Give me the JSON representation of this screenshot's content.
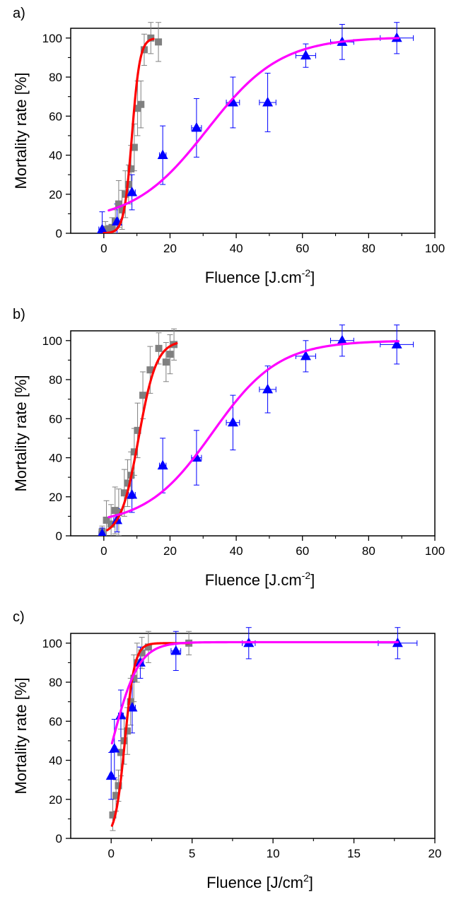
{
  "chart_data": [
    {
      "type": "scatter",
      "panel_label": "a)",
      "xlabel": {
        "main": "Fluence [J.cm",
        "sup": "-2",
        "end": "]"
      },
      "ylabel": "Mortality rate [%]",
      "xlim": [
        -10,
        100
      ],
      "ylim": [
        0,
        105
      ],
      "xticks": [
        0,
        20,
        40,
        60,
        80,
        100
      ],
      "yticks": [
        0,
        20,
        40,
        60,
        80,
        100
      ],
      "xminor_step": 10,
      "yminor_step": 10,
      "grid": false,
      "series": [
        {
          "marker": "square",
          "color": "#808080",
          "points": [
            {
              "x": 0.5,
              "y": 2,
              "yerr": 4
            },
            {
              "x": 1.5,
              "y": 0,
              "yerr": 4
            },
            {
              "x": 2.5,
              "y": 3,
              "yerr": 5
            },
            {
              "x": 3.5,
              "y": 6,
              "yerr": 6
            },
            {
              "x": 4.5,
              "y": 15,
              "yerr": 12
            },
            {
              "x": 5.5,
              "y": 12,
              "yerr": 10
            },
            {
              "x": 6.5,
              "y": 20,
              "yerr": 12
            },
            {
              "x": 7.5,
              "y": 25,
              "yerr": 10
            },
            {
              "x": 8.2,
              "y": 33,
              "yerr": 12
            },
            {
              "x": 9.2,
              "y": 44,
              "yerr": 12
            },
            {
              "x": 10.2,
              "y": 64,
              "yerr": 14
            },
            {
              "x": 11.2,
              "y": 66,
              "yerr": 12
            },
            {
              "x": 12.2,
              "y": 94,
              "yerr": 8
            },
            {
              "x": 14.2,
              "y": 100,
              "yerr": 8
            },
            {
              "x": 16.5,
              "y": 98,
              "yerr": 10
            }
          ],
          "fit": {
            "model": "logistic",
            "A1": 0,
            "A2": 100,
            "x0": 8.5,
            "s": 1.2,
            "xrange": [
              0,
              15
            ]
          },
          "fit_color": "#ff0000"
        },
        {
          "marker": "triangle",
          "color": "#0000ff",
          "points": [
            {
              "x": -0.5,
              "y": 2,
              "yerr": 9,
              "xerr": 1
            },
            {
              "x": 4,
              "y": 6,
              "yerr": 9,
              "xerr": 1
            },
            {
              "x": 8.5,
              "y": 21,
              "yerr": 9,
              "xerr": 1
            },
            {
              "x": 17.8,
              "y": 40,
              "yerr": 15,
              "xerr": 1
            },
            {
              "x": 28,
              "y": 54,
              "yerr": 15,
              "xerr": 1.5
            },
            {
              "x": 39,
              "y": 67,
              "yerr": 13,
              "xerr": 2
            },
            {
              "x": 49.5,
              "y": 67,
              "yerr": 15,
              "xerr": 2.5
            },
            {
              "x": 61,
              "y": 91,
              "yerr": 6,
              "xerr": 3
            },
            {
              "x": 72,
              "y": 98,
              "yerr": 9,
              "xerr": 3.5
            },
            {
              "x": 88.5,
              "y": 100,
              "yerr": 8,
              "xerr": 5
            }
          ],
          "fit": {
            "model": "logistic",
            "A1": 5.6,
            "A2": 100.5,
            "x0": 31.2,
            "s": 11.1,
            "xrange": [
              1.5,
              89
            ]
          },
          "fit_color": "#ff00ff"
        }
      ]
    },
    {
      "type": "scatter",
      "panel_label": "b)",
      "xlabel": {
        "main": "Fluence [J.cm",
        "sup": "-2",
        "end": "]"
      },
      "ylabel": "Mortality rate [%]",
      "xlim": [
        -10,
        100
      ],
      "ylim": [
        0,
        105
      ],
      "xticks": [
        0,
        20,
        40,
        60,
        80,
        100
      ],
      "yticks": [
        0,
        20,
        40,
        60,
        80,
        100
      ],
      "xminor_step": 10,
      "yminor_step": 10,
      "grid": false,
      "series": [
        {
          "marker": "square",
          "color": "#808080",
          "points": [
            {
              "x": -0.5,
              "y": 2,
              "yerr": 3
            },
            {
              "x": 0.8,
              "y": 8,
              "yerr": 10
            },
            {
              "x": 2.2,
              "y": 6,
              "yerr": 10
            },
            {
              "x": 3.4,
              "y": 13,
              "yerr": 12
            },
            {
              "x": 4.5,
              "y": 12,
              "yerr": 12
            },
            {
              "x": 6.2,
              "y": 22,
              "yerr": 12
            },
            {
              "x": 7.2,
              "y": 27,
              "yerr": 12
            },
            {
              "x": 8.2,
              "y": 31,
              "yerr": 12
            },
            {
              "x": 9.2,
              "y": 43,
              "yerr": 12
            },
            {
              "x": 10.2,
              "y": 54,
              "yerr": 14
            },
            {
              "x": 11.8,
              "y": 72,
              "yerr": 12
            },
            {
              "x": 14,
              "y": 85,
              "yerr": 12
            },
            {
              "x": 16.6,
              "y": 96,
              "yerr": 8
            },
            {
              "x": 18.8,
              "y": 89,
              "yerr": 10
            },
            {
              "x": 20,
              "y": 93,
              "yerr": 10
            },
            {
              "x": 21.2,
              "y": 98,
              "yerr": 8
            }
          ],
          "fit": {
            "model": "logistic",
            "A1": 0,
            "A2": 100,
            "x0": 10.5,
            "s": 2.7,
            "xrange": [
              1,
              22
            ]
          },
          "fit_color": "#ff0000"
        },
        {
          "marker": "triangle",
          "color": "#0000ff",
          "points": [
            {
              "x": -0.5,
              "y": 1,
              "yerr": 3,
              "xerr": 1
            },
            {
              "x": 4,
              "y": 8,
              "yerr": 6,
              "xerr": 1
            },
            {
              "x": 8.5,
              "y": 21,
              "yerr": 9,
              "xerr": 1
            },
            {
              "x": 17.8,
              "y": 36,
              "yerr": 14,
              "xerr": 1
            },
            {
              "x": 28,
              "y": 40,
              "yerr": 14,
              "xerr": 1.5
            },
            {
              "x": 39,
              "y": 58,
              "yerr": 14,
              "xerr": 2
            },
            {
              "x": 49.5,
              "y": 75,
              "yerr": 12,
              "xerr": 2.5
            },
            {
              "x": 61,
              "y": 92,
              "yerr": 8,
              "xerr": 3
            },
            {
              "x": 72,
              "y": 100,
              "yerr": 8,
              "xerr": 3.5
            },
            {
              "x": 88.5,
              "y": 98,
              "yerr": 10,
              "xerr": 5
            }
          ],
          "fit": {
            "model": "logistic",
            "A1": 5.6,
            "A2": 100,
            "x0": 32.8,
            "s": 10,
            "xrange": [
              1.5,
              89
            ]
          },
          "fit_color": "#ff00ff"
        }
      ]
    },
    {
      "type": "scatter",
      "panel_label": "c)",
      "xlabel": {
        "main": "Fluence [J/cm",
        "sup": "2",
        "end": "]"
      },
      "ylabel": "Mortality rate [%]",
      "xlim": [
        -2.5,
        20
      ],
      "ylim": [
        0,
        105
      ],
      "xticks": [
        0,
        5,
        10,
        15,
        20
      ],
      "yticks": [
        0,
        20,
        40,
        60,
        80,
        100
      ],
      "xminor_step": 2.5,
      "yminor_step": 10,
      "grid": false,
      "series": [
        {
          "marker": "square",
          "color": "#808080",
          "points": [
            {
              "x": 0.1,
              "y": 12,
              "yerr": 8
            },
            {
              "x": 0.3,
              "y": 22,
              "yerr": 8
            },
            {
              "x": 0.45,
              "y": 27,
              "yerr": 8
            },
            {
              "x": 0.6,
              "y": 44,
              "yerr": 12
            },
            {
              "x": 0.8,
              "y": 50,
              "yerr": 12
            },
            {
              "x": 1.0,
              "y": 55,
              "yerr": 12
            },
            {
              "x": 1.2,
              "y": 70,
              "yerr": 12
            },
            {
              "x": 1.4,
              "y": 82,
              "yerr": 12
            },
            {
              "x": 1.6,
              "y": 90,
              "yerr": 10
            },
            {
              "x": 1.9,
              "y": 95,
              "yerr": 8
            },
            {
              "x": 2.3,
              "y": 98,
              "yerr": 8
            },
            {
              "x": 4.8,
              "y": 100,
              "yerr": 6
            }
          ],
          "fit": {
            "model": "logistic",
            "A1": 0,
            "A2": 100,
            "x0": 0.85,
            "s": 0.3,
            "xrange": [
              0.05,
              4.8
            ]
          },
          "fit_color": "#ff0000"
        },
        {
          "marker": "triangle",
          "color": "#0000ff",
          "points": [
            {
              "x": 0.0,
              "y": 32,
              "yerr": 12,
              "xerr": 0.1
            },
            {
              "x": 0.2,
              "y": 46,
              "yerr": 15,
              "xerr": 0.1
            },
            {
              "x": 0.6,
              "y": 63,
              "yerr": 13,
              "xerr": 0.15
            },
            {
              "x": 1.3,
              "y": 67,
              "yerr": 13,
              "xerr": 0.2
            },
            {
              "x": 1.8,
              "y": 90,
              "yerr": 8,
              "xerr": 0.2
            },
            {
              "x": 4.0,
              "y": 96,
              "yerr": 10,
              "xerr": 0.3
            },
            {
              "x": 8.5,
              "y": 100,
              "yerr": 8,
              "xerr": 0.4
            },
            {
              "x": 17.7,
              "y": 100,
              "yerr": 8,
              "xerr": 1.2
            }
          ],
          "fit": {
            "model": "logistic",
            "A1": 0,
            "A2": 100.5,
            "x0": 0.1,
            "s": 0.8,
            "xrange": [
              0.05,
              17.7
            ]
          },
          "fit_color": "#ff00ff"
        }
      ]
    }
  ]
}
